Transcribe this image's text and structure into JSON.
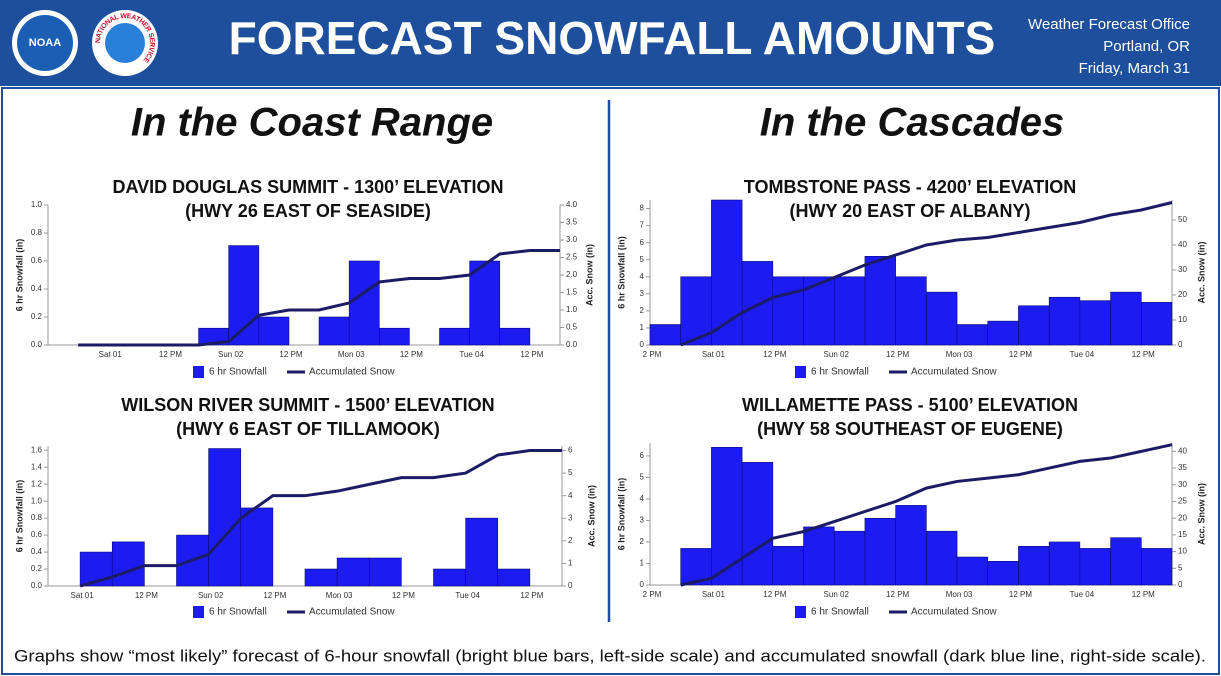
{
  "header": {
    "logos": [
      "NOAA",
      "NATIONAL WEATHER SERVICE"
    ],
    "title": "FORECAST SNOWFALL AMOUNTS",
    "office": [
      "Weather Forecast Office",
      "Portland, OR",
      "Friday, March 31"
    ]
  },
  "sections": [
    "In the Coast Range",
    "In the Cascades"
  ],
  "footer": "Graphs show “most likely” forecast of 6-hour snowfall (bright blue bars, left-side scale) and accumulated snowfall (dark blue line, right-side scale).",
  "chart_data": [
    {
      "type": "combo",
      "title": "DAVID DOUGLAS SUMMIT - 1300’ ELEVATION",
      "subtitle": "(HWY 26 EAST OF SEASIDE)",
      "categories": [
        null,
        null,
        "Sat 01",
        null,
        "12 PM",
        null,
        "Sun 02",
        null,
        "12 PM",
        null,
        "Mon 03",
        null,
        "12 PM",
        null,
        "Tue 04",
        null,
        "12 PM"
      ],
      "series": [
        {
          "name": "6 hr Snowfall",
          "type": "bar",
          "color": "#1c1cf0",
          "values": [
            0,
            0,
            0,
            0,
            0,
            0.12,
            0.71,
            0.2,
            0,
            0.2,
            0.6,
            0.12,
            0,
            0.12,
            0.6,
            0.12,
            0
          ]
        },
        {
          "name": "Accumulated Snow",
          "type": "line",
          "axis": "y2",
          "color": "#1c1c66",
          "values": [
            0,
            0,
            0,
            0,
            0,
            0.1,
            0.85,
            1.0,
            1.0,
            1.2,
            1.8,
            1.9,
            1.9,
            2.0,
            2.6,
            2.7,
            2.7
          ]
        }
      ],
      "ylabel": "6 hr Snowfall (in)",
      "y2label": "Acc. Snow (in)",
      "ylim": [
        0,
        1
      ],
      "yticks": [
        {
          "value": 0,
          "label": "0.0"
        },
        0.2,
        0.4,
        0.6,
        0.8,
        {
          "value": 1,
          "label": "1.0"
        }
      ],
      "y2lim": [
        0,
        4
      ],
      "y2ticks": [
        {
          "value": 0,
          "label": "0.0"
        },
        0.5,
        {
          "value": 1,
          "label": "1.0"
        },
        1.5,
        {
          "value": 2,
          "label": "2.0"
        },
        2.5,
        {
          "value": 3,
          "label": "3.0"
        },
        3.5,
        {
          "value": 4,
          "label": "4.0"
        }
      ]
    },
    {
      "type": "combo",
      "title": "WILSON RIVER SUMMIT - 1500’ ELEVATION",
      "subtitle": "(HWY 6 EAST OF TILLAMOOK)",
      "categories": [
        null,
        "Sat 01",
        null,
        "12 PM",
        null,
        "Sun 02",
        null,
        "12 PM",
        null,
        "Mon 03",
        null,
        "12 PM",
        null,
        "Tue 04",
        null,
        "12 PM"
      ],
      "series": [
        {
          "name": "6 hr Snowfall",
          "type": "bar",
          "color": "#1c1cf0",
          "values": [
            0,
            0.4,
            0.52,
            0,
            0.6,
            1.62,
            0.92,
            0,
            0.2,
            0.33,
            0.33,
            0,
            0.2,
            0.8,
            0.2,
            0
          ]
        },
        {
          "name": "Accumulated Snow",
          "type": "line",
          "axis": "y2",
          "color": "#1c1c66",
          "values": [
            0,
            0.4,
            0.9,
            0.9,
            1.4,
            3.0,
            4.0,
            4.0,
            4.2,
            4.5,
            4.8,
            4.8,
            5.0,
            5.8,
            6.0,
            6.0
          ]
        }
      ],
      "ylabel": "6 hr Snowfall (in)",
      "y2label": "Acc. Snow (in)",
      "ylim": [
        0,
        1.65
      ],
      "yticks": [
        {
          "value": 0,
          "label": "0.0"
        },
        0.2,
        0.4,
        0.6,
        0.8,
        {
          "value": 1,
          "label": "1.0"
        },
        1.2,
        1.4,
        1.6
      ],
      "y2lim": [
        0,
        6.2
      ],
      "y2ticks": [
        0,
        1,
        2,
        3,
        4,
        5,
        6
      ]
    },
    {
      "type": "combo",
      "title": "TOMBSTONE PASS - 4200’ ELEVATION",
      "subtitle": "(HWY 20 EAST OF ALBANY)",
      "categories": [
        "2 PM",
        null,
        "Sat 01",
        null,
        "12 PM",
        null,
        "Sun 02",
        null,
        "12 PM",
        null,
        "Mon 03",
        null,
        "12 PM",
        null,
        "Tue 04",
        null,
        "12 PM"
      ],
      "series": [
        {
          "name": "6 hr Snowfall",
          "type": "bar",
          "color": "#1c1cf0",
          "values": [
            1.2,
            4.0,
            8.5,
            4.9,
            4.0,
            4.0,
            4.0,
            5.2,
            4.0,
            3.1,
            1.2,
            1.4,
            2.3,
            2.8,
            2.6,
            3.1,
            2.5
          ]
        },
        {
          "name": "Accumulated Snow",
          "type": "line",
          "axis": "y2",
          "color": "#1c1c66",
          "values": [
            0,
            5,
            13,
            19,
            22,
            27,
            32,
            36,
            40,
            42,
            43,
            45,
            47,
            49,
            52,
            54,
            57
          ]
        }
      ],
      "ylabel": "6 hr Snowfall (in)",
      "y2label": "Acc. Snow (in)",
      "ylim": [
        0,
        8.5
      ],
      "yticks": [
        0,
        1,
        2,
        3,
        4,
        5,
        6,
        7,
        8
      ],
      "y2lim": [
        0,
        58
      ],
      "y2ticks": [
        0,
        10,
        20,
        30,
        40,
        50
      ]
    },
    {
      "type": "combo",
      "title": "WILLAMETTE PASS - 5100’ ELEVATION",
      "subtitle": "(HWY 58 SOUTHEAST OF EUGENE)",
      "categories": [
        "2 PM",
        null,
        "Sat 01",
        null,
        "12 PM",
        null,
        "Sun 02",
        null,
        "12 PM",
        null,
        "Mon 03",
        null,
        "12 PM",
        null,
        "Tue 04",
        null,
        "12 PM"
      ],
      "series": [
        {
          "name": "6 hr Snowfall",
          "type": "bar",
          "color": "#1c1cf0",
          "values": [
            0,
            1.7,
            6.4,
            5.7,
            1.8,
            2.7,
            2.5,
            3.1,
            3.7,
            2.5,
            1.3,
            1.1,
            1.8,
            2.0,
            1.7,
            2.2,
            1.7
          ]
        },
        {
          "name": "Accumulated Snow",
          "type": "line",
          "axis": "y2",
          "color": "#1c1c66",
          "values": [
            0,
            2,
            8,
            14,
            16,
            19,
            22,
            25,
            29,
            31,
            32,
            33,
            35,
            37,
            38,
            40,
            42
          ]
        }
      ],
      "ylabel": "6 hr Snowfall (in)",
      "y2label": "Acc. Snow (in)",
      "ylim": [
        0,
        6.6
      ],
      "yticks": [
        0,
        1,
        2,
        3,
        4,
        5,
        6
      ],
      "y2lim": [
        0,
        42.5
      ],
      "y2ticks": [
        0,
        5,
        10,
        15,
        20,
        25,
        30,
        35,
        40
      ]
    }
  ]
}
